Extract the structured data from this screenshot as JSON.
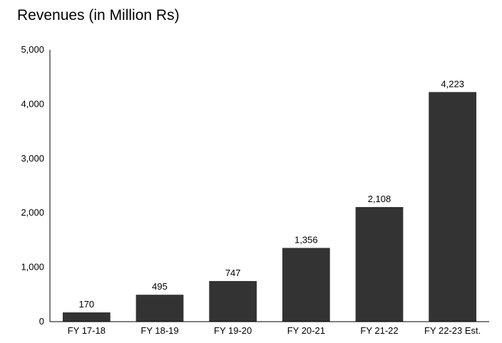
{
  "chart_data": {
    "type": "bar",
    "title": "Revenues (in Million Rs)",
    "categories": [
      "FY 17-18",
      "FY 18-19",
      "FY 19-20",
      "FY 20-21",
      "FY 21-22",
      "FY 22-23 Est."
    ],
    "values": [
      170,
      495,
      747,
      1356,
      2108,
      4223
    ],
    "value_labels": [
      "170",
      "495",
      "747",
      "1,356",
      "2,108",
      "4,223"
    ],
    "ylim": [
      0,
      5000
    ],
    "yticks": [
      0,
      1000,
      2000,
      3000,
      4000,
      5000
    ],
    "ytick_labels": [
      "0",
      "1,000",
      "2,000",
      "3,000",
      "4,000",
      "5,000"
    ],
    "grid": false,
    "bar_color": "#333333"
  }
}
